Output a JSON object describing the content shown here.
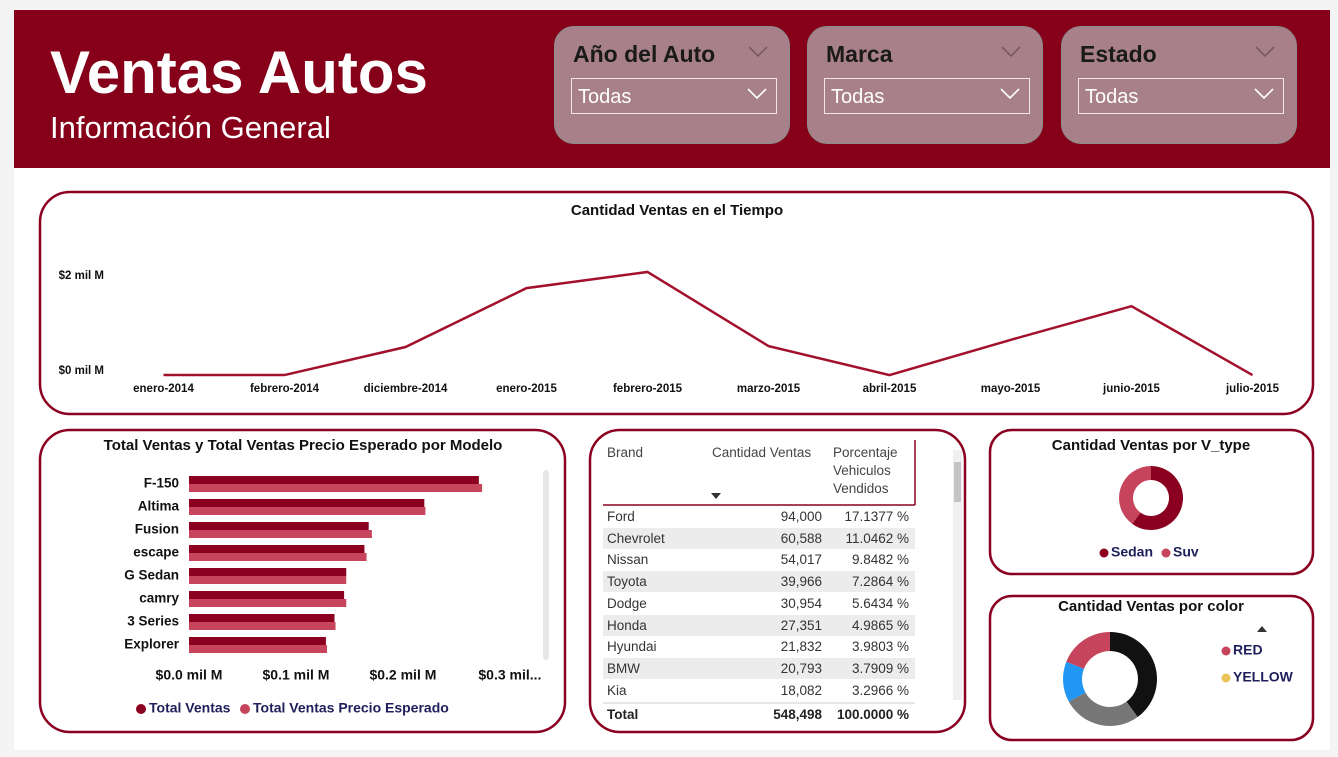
{
  "header": {
    "title": "Ventas Autos",
    "subtitle": "Información General"
  },
  "filters": [
    {
      "label": "Año del Auto",
      "value": "Todas"
    },
    {
      "label": "Marca",
      "value": "Todas"
    },
    {
      "label": "Estado",
      "value": "Todas"
    }
  ],
  "chart_data": [
    {
      "type": "line",
      "title": "Cantidad Ventas en el Tiempo",
      "categories": [
        "enero-2014",
        "febrero-2014",
        "diciembre-2014",
        "enero-2015",
        "febrero-2015",
        "marzo-2015",
        "abril-2015",
        "mayo-2015",
        "junio-2015",
        "julio-2015"
      ],
      "series": [
        {
          "color": "#a3102c",
          "values": [
            0.02,
            0.02,
            0.61,
            1.85,
            2.19,
            0.63,
            0.02,
            0.76,
            1.47,
            0.02
          ]
        }
      ],
      "ylim": [
        0,
        3
      ],
      "yticks": [
        {
          "value": 0,
          "label": "$0 mil M"
        },
        {
          "value": 2,
          "label": "$2 mil M"
        }
      ]
    },
    {
      "type": "bar",
      "title": "Total Ventas y Total Ventas Precio Esperado por Modelo",
      "categories": [
        "F-150",
        "Altima",
        "Fusion",
        "escape",
        "G Sedan",
        "camry",
        "3 Series",
        "Explorer"
      ],
      "series": [
        {
          "name": "Total Ventas",
          "color": "#8b0020",
          "values": [
            0.271,
            0.22,
            0.168,
            0.164,
            0.147,
            0.145,
            0.136,
            0.128
          ]
        },
        {
          "name": "Total Ventas Precio Esperado",
          "color": "#c7455c",
          "values": [
            0.274,
            0.221,
            0.171,
            0.166,
            0.147,
            0.147,
            0.137,
            0.129
          ]
        }
      ],
      "xlim": [
        0,
        0.33
      ],
      "xticks": [
        {
          "value": 0,
          "label": "$0.0 mil M"
        },
        {
          "value": 0.1,
          "label": "$0.1 mil M"
        },
        {
          "value": 0.2,
          "label": "$0.2 mil M"
        },
        {
          "value": 0.3,
          "label": "$0.3 mil..."
        }
      ]
    },
    {
      "type": "donut",
      "title": "Cantidad Ventas por V_type",
      "categories": [
        "Sedan",
        "Suv"
      ],
      "values": [
        60,
        40
      ],
      "colors": [
        "#8b0020",
        "#c7455c"
      ]
    },
    {
      "type": "donut",
      "title": "Cantidad Ventas por color",
      "categories": [
        null,
        null,
        null,
        "RED",
        "YELLOW"
      ],
      "values": [
        40,
        27,
        14,
        19,
        0
      ],
      "colors": [
        "#111111",
        "#777777",
        "#2196f3",
        "#c7455c",
        "#e8c55a"
      ]
    }
  ],
  "table": {
    "columns": [
      "Brand",
      "Cantidad Ventas",
      "Porcentaje Vehiculos Vendidos"
    ],
    "rows": [
      [
        "Ford",
        "94,000",
        "17.1377 %"
      ],
      [
        "Chevrolet",
        "60,588",
        "11.0462 %"
      ],
      [
        "Nissan",
        "54,017",
        "9.8482 %"
      ],
      [
        "Toyota",
        "39,966",
        "7.2864 %"
      ],
      [
        "Dodge",
        "30,954",
        "5.6434 %"
      ],
      [
        "Honda",
        "27,351",
        "4.9865 %"
      ],
      [
        "Hyundai",
        "21,832",
        "3.9803 %"
      ],
      [
        "BMW",
        "20,793",
        "3.7909 %"
      ],
      [
        "Kia",
        "18,082",
        "3.2966 %"
      ]
    ],
    "total": [
      "Total",
      "548,498",
      "100.0000 %"
    ]
  }
}
